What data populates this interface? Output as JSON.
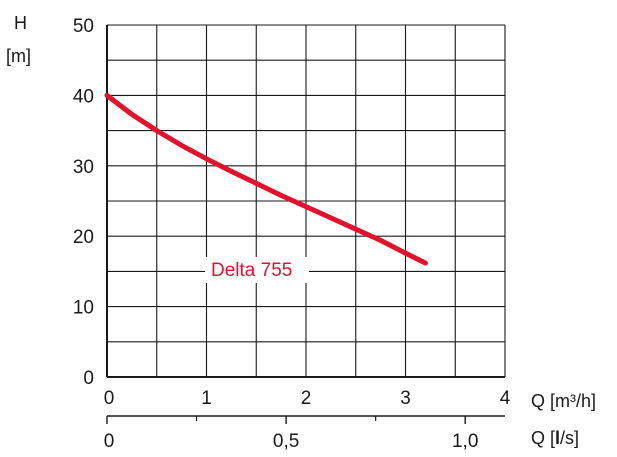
{
  "chart_data": {
    "type": "line",
    "ylabel": "H",
    "yunit": "[m]",
    "xlabel": "Q [m³/h]",
    "x2label_prefix": "Q [",
    "x2label_bold": "l",
    "x2label_suffix": "/s]",
    "xlim": [
      0,
      4
    ],
    "ylim": [
      0,
      50
    ],
    "grid": true,
    "x_ticks": [
      "0",
      "1",
      "2",
      "3",
      "4"
    ],
    "y_ticks": [
      "0",
      "10",
      "20",
      "30",
      "40",
      "50"
    ],
    "x2_ticks": [
      {
        "q": 0,
        "label": "0"
      },
      {
        "q": 0.5,
        "label": "0,5"
      },
      {
        "q": 1.0,
        "label": "1,0"
      }
    ],
    "x2_minor_ticks": [
      0.25,
      0.75
    ],
    "series": [
      {
        "name": "Delta 755",
        "color": "#e3122a",
        "x": [
          0,
          0.25,
          0.5,
          0.75,
          1.0,
          1.25,
          1.5,
          1.75,
          2.0,
          2.25,
          2.5,
          2.75,
          3.0,
          3.2
        ],
        "y": [
          40,
          37.3,
          35,
          32.9,
          31,
          29.2,
          27.5,
          25.8,
          24.2,
          22.6,
          21,
          19.4,
          17.6,
          16.2
        ]
      }
    ]
  }
}
